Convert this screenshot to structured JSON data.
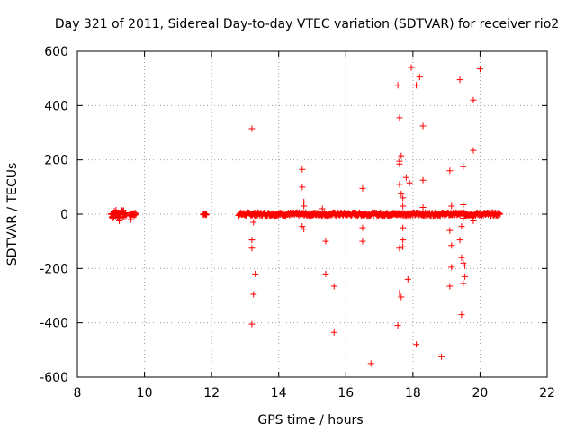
{
  "chart_data": {
    "type": "scatter",
    "title": "Day 321 of 2011, Sidereal Day-to-day VTEC variation (SDTVAR) for receiver rio2",
    "xlabel": "GPS time / hours",
    "ylabel": "SDTVAR / TECUs",
    "xlim": [
      8,
      22
    ],
    "ylim": [
      -600,
      600
    ],
    "xticks": [
      "8",
      "10",
      "12",
      "14",
      "16",
      "18",
      "20",
      "22"
    ],
    "yticks": [
      "-600",
      "-400",
      "-200",
      "0",
      "200",
      "400",
      "600"
    ],
    "grid": true,
    "marker": "+",
    "color": "#ff0000",
    "dense_bands": [
      {
        "x_start": 9.0,
        "x_end": 9.45,
        "spread": 15
      },
      {
        "x_start": 9.55,
        "x_end": 9.75,
        "spread": 5
      },
      {
        "x_start": 11.75,
        "x_end": 11.85,
        "spread": 4
      },
      {
        "x_start": 12.8,
        "x_end": 20.6,
        "spread": 6
      }
    ],
    "outliers": [
      {
        "x": 9.05,
        "y": -15
      },
      {
        "x": 9.15,
        "y": 15
      },
      {
        "x": 9.25,
        "y": -25
      },
      {
        "x": 9.35,
        "y": 10
      },
      {
        "x": 9.6,
        "y": -20
      },
      {
        "x": 13.2,
        "y": 315
      },
      {
        "x": 13.2,
        "y": -405
      },
      {
        "x": 13.25,
        "y": -295
      },
      {
        "x": 13.3,
        "y": -220
      },
      {
        "x": 13.2,
        "y": -125
      },
      {
        "x": 13.2,
        "y": -95
      },
      {
        "x": 13.25,
        "y": -30
      },
      {
        "x": 14.7,
        "y": 165
      },
      {
        "x": 14.7,
        "y": 100
      },
      {
        "x": 14.75,
        "y": 45
      },
      {
        "x": 14.75,
        "y": 30
      },
      {
        "x": 14.7,
        "y": -45
      },
      {
        "x": 14.75,
        "y": -55
      },
      {
        "x": 15.3,
        "y": 20
      },
      {
        "x": 15.4,
        "y": -100
      },
      {
        "x": 15.4,
        "y": -220
      },
      {
        "x": 15.65,
        "y": -265
      },
      {
        "x": 15.65,
        "y": -435
      },
      {
        "x": 16.5,
        "y": 95
      },
      {
        "x": 16.5,
        "y": -50
      },
      {
        "x": 16.5,
        "y": -100
      },
      {
        "x": 16.75,
        "y": -550
      },
      {
        "x": 17.55,
        "y": 475
      },
      {
        "x": 17.6,
        "y": 355
      },
      {
        "x": 17.65,
        "y": 215
      },
      {
        "x": 17.6,
        "y": 195
      },
      {
        "x": 17.6,
        "y": 185
      },
      {
        "x": 17.6,
        "y": 110
      },
      {
        "x": 17.65,
        "y": 75
      },
      {
        "x": 17.7,
        "y": 60
      },
      {
        "x": 17.7,
        "y": 30
      },
      {
        "x": 17.7,
        "y": -50
      },
      {
        "x": 17.7,
        "y": -95
      },
      {
        "x": 17.6,
        "y": -125
      },
      {
        "x": 17.7,
        "y": -120
      },
      {
        "x": 17.6,
        "y": -290
      },
      {
        "x": 17.65,
        "y": -305
      },
      {
        "x": 17.55,
        "y": -410
      },
      {
        "x": 17.8,
        "y": 135
      },
      {
        "x": 17.9,
        "y": 115
      },
      {
        "x": 17.85,
        "y": -240
      },
      {
        "x": 17.95,
        "y": 540
      },
      {
        "x": 18.1,
        "y": 475
      },
      {
        "x": 18.2,
        "y": 505
      },
      {
        "x": 18.3,
        "y": 325
      },
      {
        "x": 18.3,
        "y": 125
      },
      {
        "x": 18.3,
        "y": 25
      },
      {
        "x": 18.1,
        "y": -480
      },
      {
        "x": 18.85,
        "y": -525
      },
      {
        "x": 19.1,
        "y": 160
      },
      {
        "x": 19.15,
        "y": 30
      },
      {
        "x": 19.1,
        "y": -60
      },
      {
        "x": 19.15,
        "y": -115
      },
      {
        "x": 19.15,
        "y": -195
      },
      {
        "x": 19.1,
        "y": -265
      },
      {
        "x": 19.4,
        "y": 495
      },
      {
        "x": 19.5,
        "y": 175
      },
      {
        "x": 19.5,
        "y": 35
      },
      {
        "x": 19.5,
        "y": -15
      },
      {
        "x": 19.45,
        "y": -45
      },
      {
        "x": 19.4,
        "y": -95
      },
      {
        "x": 19.45,
        "y": -160
      },
      {
        "x": 19.5,
        "y": -180
      },
      {
        "x": 19.55,
        "y": -190
      },
      {
        "x": 19.55,
        "y": -230
      },
      {
        "x": 19.5,
        "y": -255
      },
      {
        "x": 19.45,
        "y": -370
      },
      {
        "x": 19.8,
        "y": 420
      },
      {
        "x": 19.8,
        "y": 235
      },
      {
        "x": 19.8,
        "y": -25
      },
      {
        "x": 20.0,
        "y": 535
      }
    ]
  }
}
